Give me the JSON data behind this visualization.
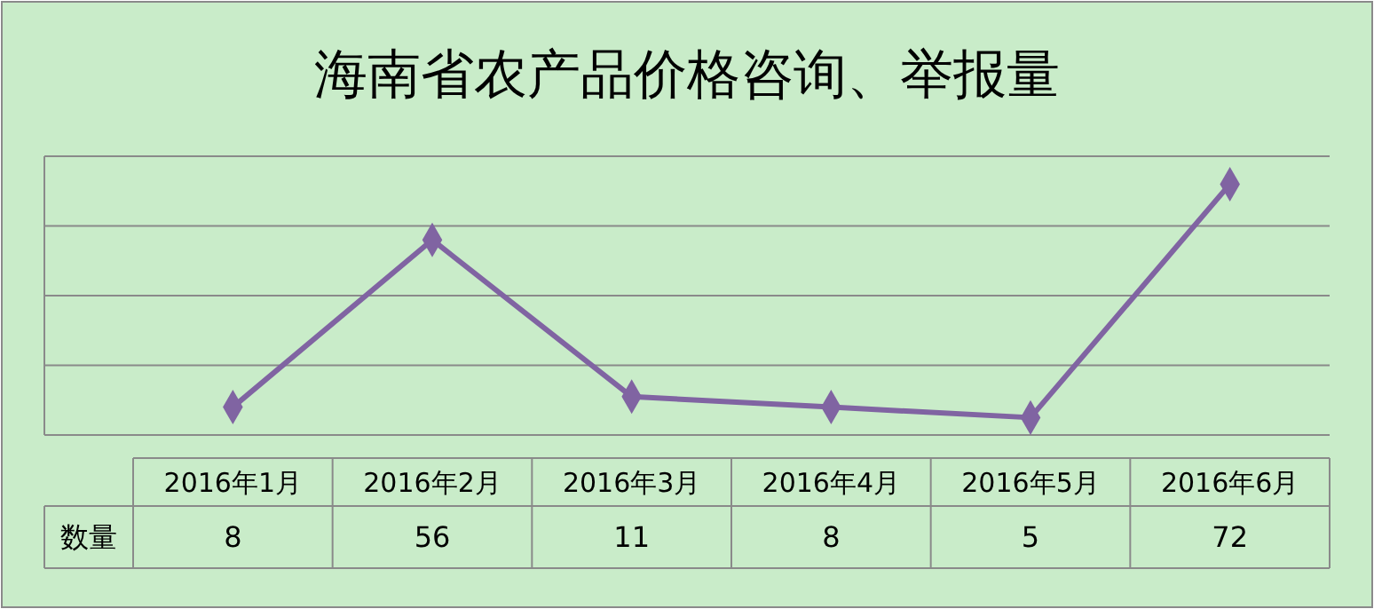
{
  "chart_data": {
    "type": "line",
    "title": "海南省农产品价格咨询、举报量",
    "categories": [
      "2016年1月",
      "2016年2月",
      "2016年3月",
      "2016年4月",
      "2016年5月",
      "2016年6月"
    ],
    "series": [
      {
        "name": "数量",
        "color": "#8064a2",
        "values": [
          8,
          56,
          11,
          8,
          5,
          72
        ]
      }
    ],
    "ylim": [
      0,
      80
    ],
    "yticks": [
      {
        "value": 0,
        "label": null
      },
      {
        "value": 20,
        "label": null
      },
      {
        "value": 40,
        "label": null
      },
      {
        "value": 60,
        "label": null
      },
      {
        "value": 80,
        "label": null
      }
    ],
    "grid": "y",
    "marker": "diamond",
    "data_labels": true
  }
}
